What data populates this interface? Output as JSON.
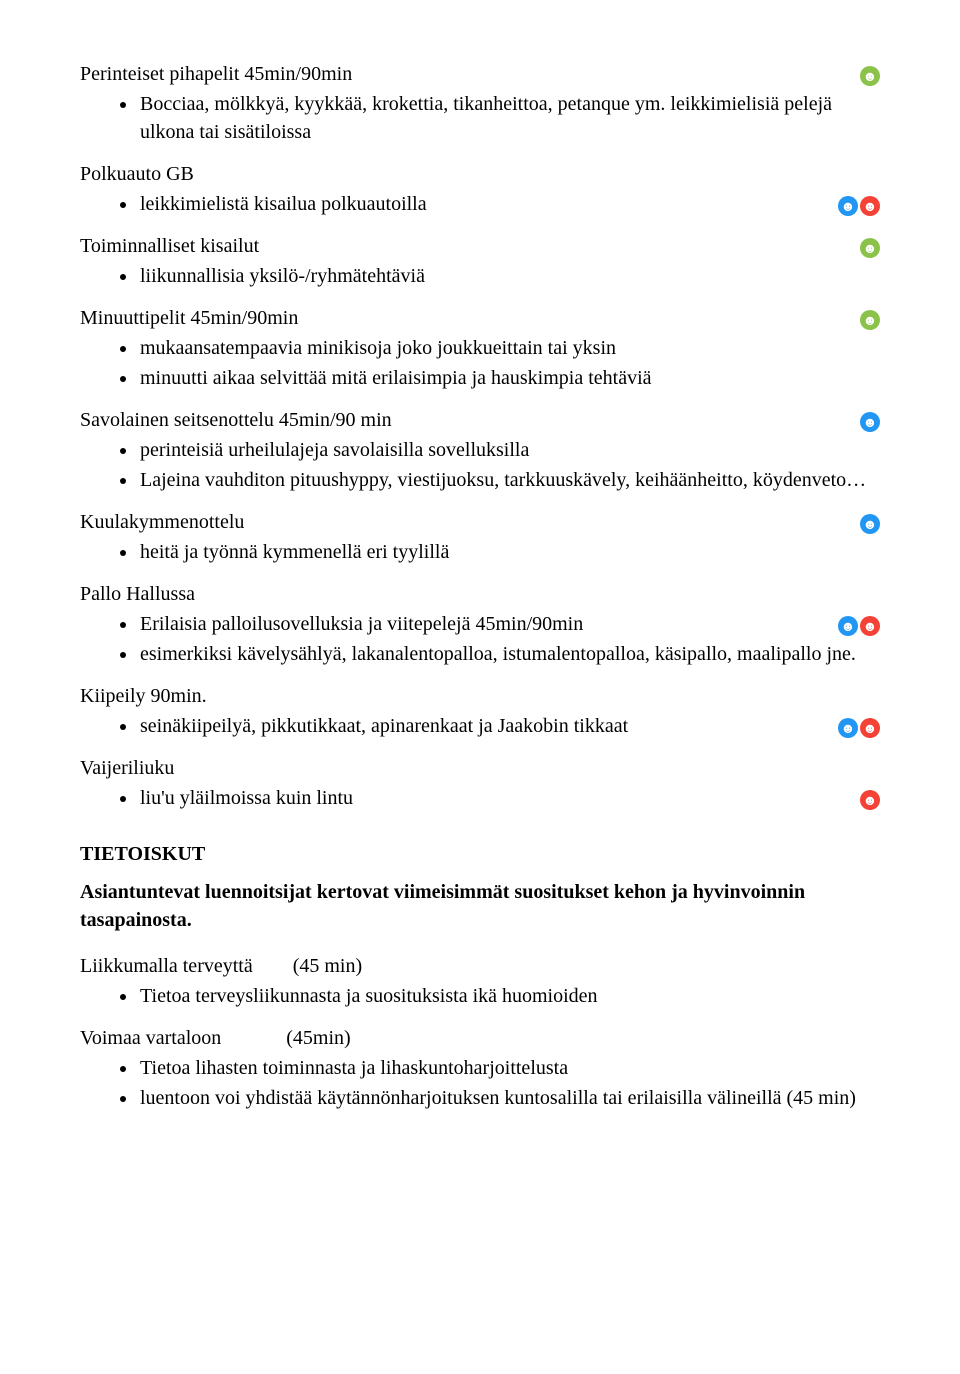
{
  "colors": {
    "green": "#8bc34a",
    "blue": "#2196f3",
    "red": "#f44336"
  },
  "typography": {
    "font_family": "Times New Roman",
    "base_size_pt": 15
  },
  "s1": {
    "title": "Perinteiset pihapelit 45min/90min",
    "icons": [
      "green"
    ],
    "b1": "Bocciaa, mölkkyä, kyykkää, krokettia, tikanheittoa, petanque ym. leikkimielisiä pelejä ulkona tai sisätiloissa"
  },
  "s2": {
    "title": "Polkuauto GB",
    "b1": "leikkimielistä kisailua polkuautoilla",
    "b1_icons": [
      "blue",
      "red"
    ]
  },
  "s3": {
    "title": "Toiminnalliset kisailut",
    "icons": [
      "green"
    ],
    "b1": "liikunnallisia yksilö-/ryhmätehtäviä"
  },
  "s4": {
    "title": "Minuuttipelit 45min/90min",
    "icons": [
      "green"
    ],
    "b1": "mukaansatempaavia minikisoja joko joukkueittain tai yksin",
    "b2": "minuutti aikaa selvittää mitä erilaisimpia ja hauskimpia tehtäviä"
  },
  "s5": {
    "title": "Savolainen seitsenottelu 45min/90 min",
    "icons": [
      "blue"
    ],
    "b1": "perinteisiä urheilulajeja savolaisilla sovelluksilla",
    "b2": "Lajeina vauhditon pituushyppy, viestijuoksu, tarkkuuskävely, keihäänheitto, köydenveto…"
  },
  "s6": {
    "title": "Kuulakymmenottelu",
    "icons": [
      "blue"
    ],
    "b1": "heitä ja työnnä kymmenellä eri tyylillä"
  },
  "s7": {
    "title": "Pallo Hallussa",
    "b1": "Erilaisia palloilusovelluksia ja viitepelejä 45min/90min",
    "b1_icons": [
      "blue",
      "red"
    ],
    "b2": "esimerkiksi kävelysählyä, lakanalentopalloa, istumalentopalloa, käsipallo, maalipallo jne."
  },
  "s8": {
    "title": "Kiipeily 90min.",
    "b1": "seinäkiipeilyä, pikkutikkaat, apinarenkaat ja Jaakobin tikkaat",
    "b1_icons": [
      "blue",
      "red"
    ]
  },
  "s9": {
    "title": "Vaijeriliuku",
    "b1": "liu'u yläilmoissa kuin lintu",
    "b1_icons": [
      "red"
    ]
  },
  "tietoiskut": {
    "heading": "TIETOISKUT",
    "intro": "Asiantunteva​t luennoitsijat kertovat viimeisimmät suositukset kehon ja hyvinvoinnin tasapainosta."
  },
  "s10": {
    "title": "Liikkumalla terveyttä",
    "dur": "(45 min)",
    "b1": "Tietoa terveysliikunnasta ja suosituksista ikä huomioiden"
  },
  "s11": {
    "title": "Voimaa vartaloon",
    "dur": "(45min)",
    "b1": "Tietoa lihasten toiminnasta ja lihaskuntoharjoittelusta",
    "b2": "luentoon voi yhdistää käytännönharjoituksen kuntosalilla tai erilaisilla välineillä (45 min)"
  }
}
